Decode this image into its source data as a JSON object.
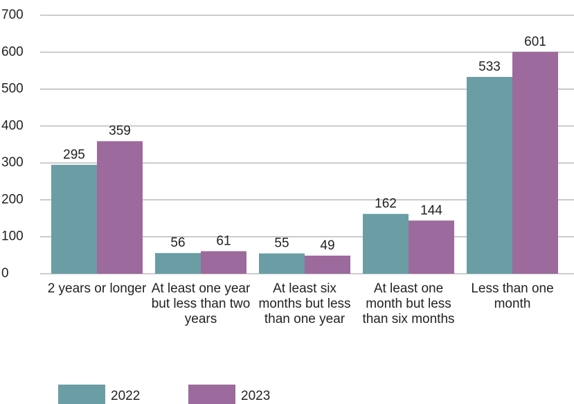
{
  "chart_data": {
    "type": "bar",
    "categories": [
      "2 years or longer",
      "At least one year but less than two years",
      "At least six months but less than one year",
      "At least one month but less than six months",
      "Less than one month"
    ],
    "series": [
      {
        "name": "2022",
        "color": "#6a9ea4",
        "values": [
          295,
          56,
          55,
          162,
          533
        ]
      },
      {
        "name": "2023",
        "color": "#9c6a9c",
        "values": [
          359,
          61,
          49,
          144,
          601
        ]
      }
    ],
    "ylim": [
      0,
      700
    ],
    "yticks": [
      0,
      100,
      200,
      300,
      400,
      500,
      600,
      700
    ],
    "grid": true,
    "legend": "bottom-left"
  }
}
